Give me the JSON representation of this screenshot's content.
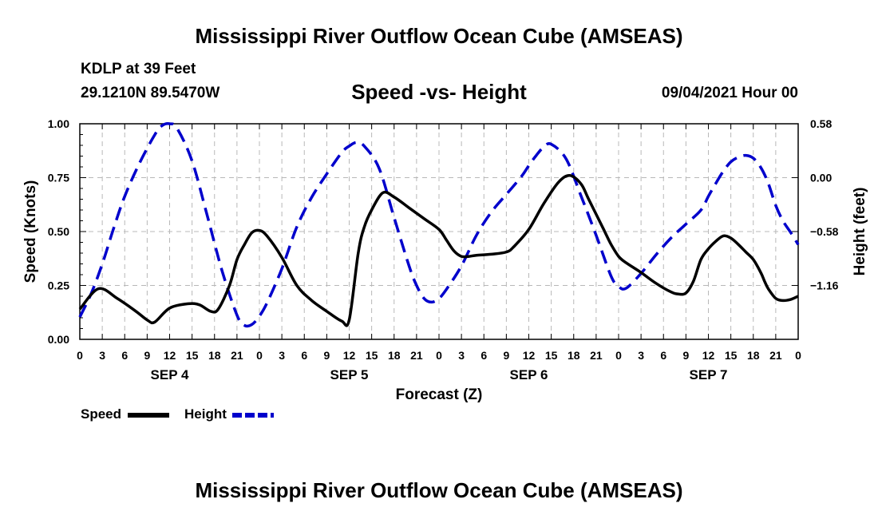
{
  "header": {
    "title": "Mississippi River Outflow Ocean Cube (AMSEAS)",
    "station": "KDLP at 39 Feet",
    "coords": "29.1210N  89.5470W",
    "subtitle": "Speed -vs- Height",
    "datetime": "09/04/2021 Hour 00"
  },
  "footer": {
    "title": "Mississippi River Outflow Ocean Cube (AMSEAS)"
  },
  "legend": {
    "speed_label": "Speed",
    "height_label": "Height"
  },
  "colors": {
    "speed": "#000000",
    "height": "#0000cc",
    "grid": "#b8b8b8"
  },
  "chart_data": {
    "type": "line",
    "title": "Speed -vs- Height",
    "xlabel": "Forecast (Z)",
    "ylabel": "Speed (Knots)",
    "y2label": "Height (feet)",
    "xlim": [
      0,
      96
    ],
    "ylim": [
      0,
      1.0
    ],
    "y2lim": [
      -1.74,
      0.58
    ],
    "x_tick_labels": [
      "0",
      "3",
      "6",
      "9",
      "12",
      "15",
      "18",
      "21",
      "0",
      "3",
      "6",
      "9",
      "12",
      "15",
      "18",
      "21",
      "0",
      "3",
      "6",
      "9",
      "12",
      "15",
      "18",
      "21",
      "0",
      "3",
      "6",
      "9",
      "12",
      "15",
      "18",
      "21",
      "0"
    ],
    "day_labels": [
      {
        "label": "SEP 4",
        "hour": 12
      },
      {
        "label": "SEP 5",
        "hour": 36
      },
      {
        "label": "SEP 6",
        "hour": 60
      },
      {
        "label": "SEP 7",
        "hour": 84
      }
    ],
    "y_tick_labels": [
      "0.00",
      "0.25",
      "0.50",
      "0.75",
      "1.00"
    ],
    "y2_tick_labels": [
      {
        "label": "0.58",
        "value": 0.58
      },
      {
        "label": "0.00",
        "value": 0.0
      },
      {
        "label": "−0.58",
        "value": -0.58
      },
      {
        "label": "−1.16",
        "value": -1.16
      }
    ],
    "grid": true,
    "legend_position": "bottom-left",
    "series": [
      {
        "name": "Speed",
        "axis": "left",
        "style": "solid",
        "x": [
          0,
          2.5,
          5,
          7.5,
          9,
          10,
          12,
          14.5,
          16,
          17.5,
          18.5,
          20,
          21,
          22,
          23,
          24,
          25,
          27,
          29,
          31,
          33,
          35,
          36,
          37.2,
          38,
          39,
          40.5,
          42,
          44,
          46,
          48,
          49,
          50,
          51,
          52,
          53,
          55,
          57,
          58,
          60,
          62,
          64,
          65.5,
          67,
          68,
          70,
          71,
          72,
          73,
          75,
          77,
          79,
          80,
          81,
          82,
          83,
          84,
          85,
          86,
          87,
          88,
          89,
          90,
          91,
          91.5,
          92,
          93,
          94,
          95,
          96
        ],
        "values": [
          0.14,
          0.235,
          0.19,
          0.13,
          0.09,
          0.08,
          0.145,
          0.165,
          0.16,
          0.13,
          0.14,
          0.25,
          0.37,
          0.44,
          0.495,
          0.505,
          0.48,
          0.38,
          0.25,
          0.18,
          0.13,
          0.085,
          0.09,
          0.4,
          0.52,
          0.6,
          0.68,
          0.66,
          0.61,
          0.56,
          0.51,
          0.46,
          0.41,
          0.385,
          0.385,
          0.39,
          0.395,
          0.405,
          0.43,
          0.51,
          0.63,
          0.73,
          0.76,
          0.72,
          0.65,
          0.51,
          0.44,
          0.385,
          0.355,
          0.31,
          0.26,
          0.22,
          0.21,
          0.215,
          0.27,
          0.37,
          0.42,
          0.455,
          0.48,
          0.47,
          0.44,
          0.405,
          0.37,
          0.31,
          0.27,
          0.235,
          0.19,
          0.18,
          0.185,
          0.2
        ]
      },
      {
        "name": "Height",
        "axis": "right",
        "style": "dashed",
        "x": [
          0,
          1.5,
          3,
          4.5,
          6,
          8,
          10,
          11,
          12,
          13,
          15,
          17,
          19,
          21,
          22,
          23,
          24,
          25,
          27,
          29,
          31,
          33,
          35,
          36,
          37,
          38,
          40,
          42,
          44,
          45,
          46,
          47,
          48,
          49,
          51,
          53,
          55,
          57,
          59,
          60,
          61,
          62,
          63,
          65,
          67,
          69,
          71,
          72,
          73,
          75,
          77,
          79,
          81,
          83,
          84,
          85,
          86,
          87,
          88,
          89,
          90,
          91,
          92,
          93,
          94,
          95,
          96
        ],
        "values": [
          -1.5,
          -1.25,
          -0.93,
          -0.55,
          -0.2,
          0.16,
          0.46,
          0.56,
          0.58,
          0.53,
          0.18,
          -0.4,
          -1.0,
          -1.48,
          -1.59,
          -1.58,
          -1.49,
          -1.35,
          -0.98,
          -0.53,
          -0.21,
          0.04,
          0.27,
          0.34,
          0.38,
          0.34,
          0.1,
          -0.43,
          -0.95,
          -1.16,
          -1.3,
          -1.34,
          -1.3,
          -1.2,
          -0.95,
          -0.62,
          -0.37,
          -0.18,
          0.01,
          0.13,
          0.24,
          0.33,
          0.36,
          0.2,
          -0.2,
          -0.62,
          -1.06,
          -1.17,
          -1.19,
          -1.03,
          -0.83,
          -0.65,
          -0.5,
          -0.35,
          -0.2,
          -0.06,
          0.07,
          0.17,
          0.22,
          0.24,
          0.21,
          0.11,
          -0.06,
          -0.3,
          -0.47,
          -0.59,
          -0.72
        ]
      }
    ]
  }
}
